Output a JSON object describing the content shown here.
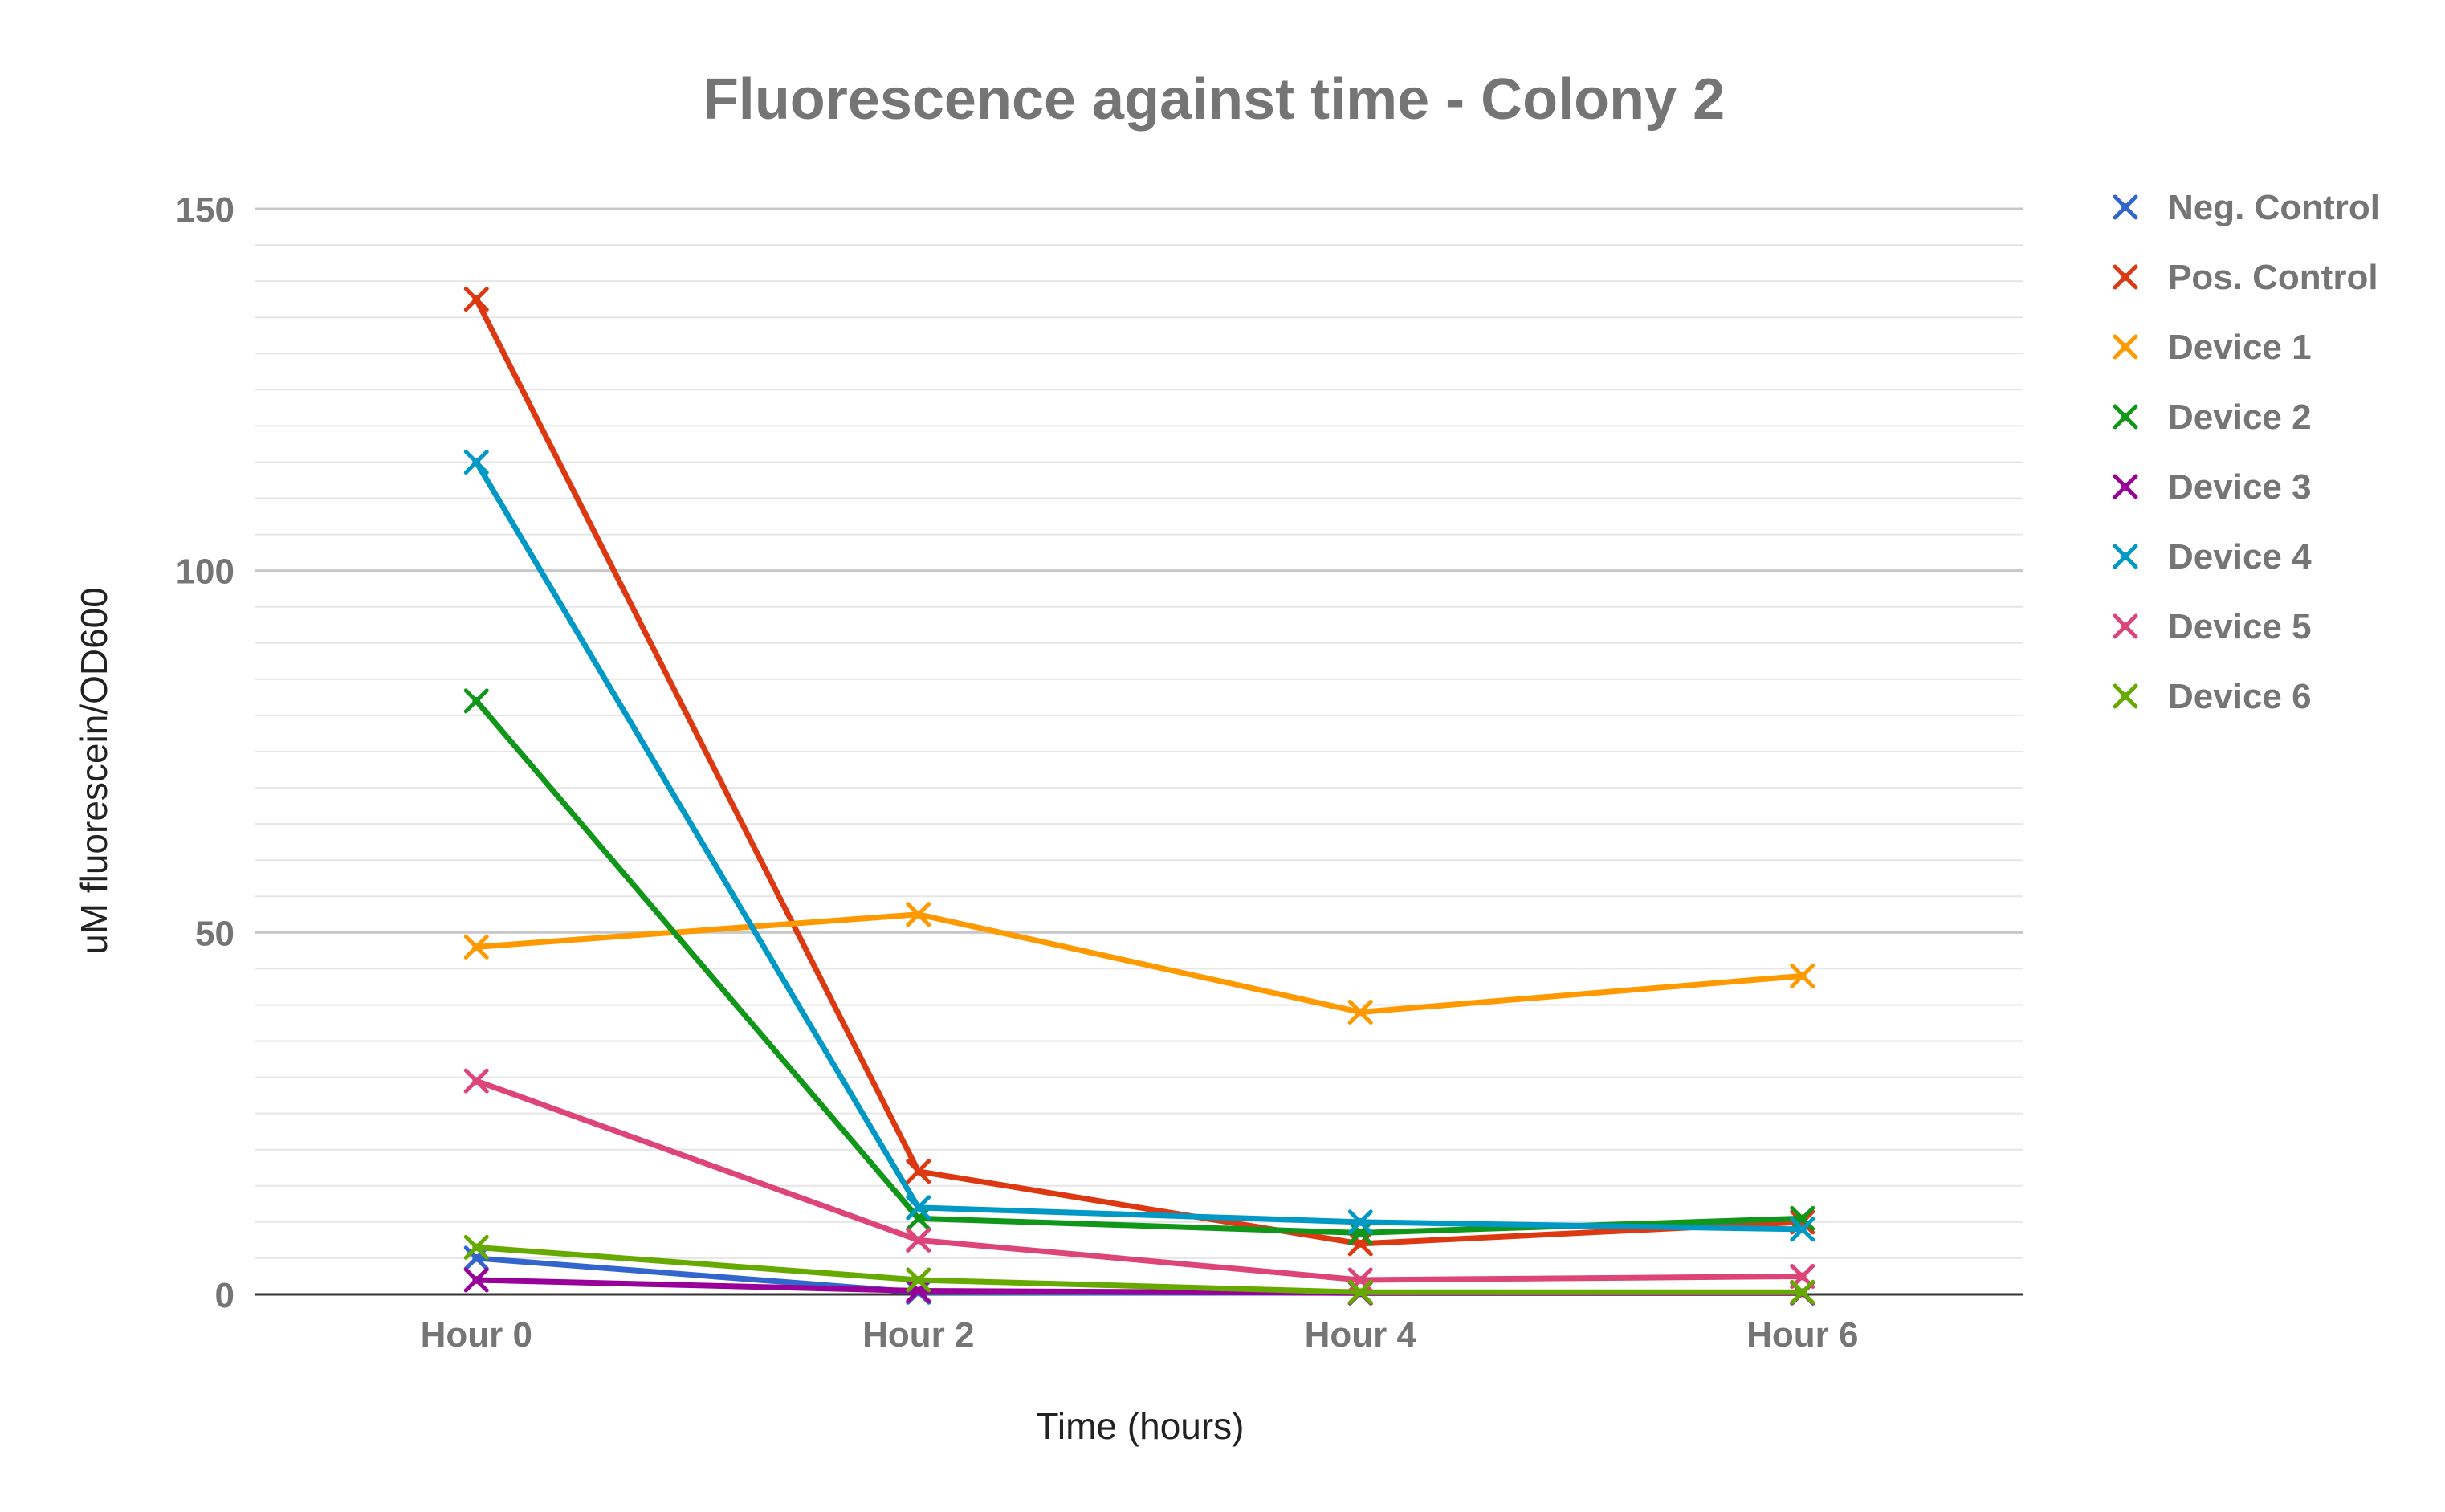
{
  "chart_data": {
    "type": "line",
    "title": "Fluorescence against time - Colony 2",
    "xlabel": "Time (hours)",
    "ylabel": "uM fluorescein/OD600",
    "categories": [
      "Hour 0",
      "Hour 2",
      "Hour 4",
      "Hour 6"
    ],
    "ylim": [
      0,
      150
    ],
    "yticks": [
      0,
      50,
      100,
      150
    ],
    "grid": true,
    "legend_position": "right",
    "series": [
      {
        "name": "Neg. Control",
        "color": "#3366cc",
        "values": [
          5,
          0.3,
          0.2,
          0.2
        ]
      },
      {
        "name": "Pos. Control",
        "color": "#dc3912",
        "values": [
          137.5,
          17,
          7,
          10
        ]
      },
      {
        "name": "Device 1",
        "color": "#ff9900",
        "values": [
          48,
          52.5,
          39,
          44
        ]
      },
      {
        "name": "Device 2",
        "color": "#109618",
        "values": [
          82,
          10.5,
          8.5,
          10.5
        ]
      },
      {
        "name": "Device 3",
        "color": "#990099",
        "values": [
          2,
          0.5,
          0.2,
          0.2
        ]
      },
      {
        "name": "Device 4",
        "color": "#0099c6",
        "values": [
          115,
          12,
          10,
          9
        ]
      },
      {
        "name": "Device 5",
        "color": "#dd4477",
        "values": [
          29.5,
          7.5,
          2,
          2.5
        ]
      },
      {
        "name": "Device 6",
        "color": "#66aa00",
        "values": [
          6.5,
          2,
          0.3,
          0.3
        ]
      }
    ]
  }
}
